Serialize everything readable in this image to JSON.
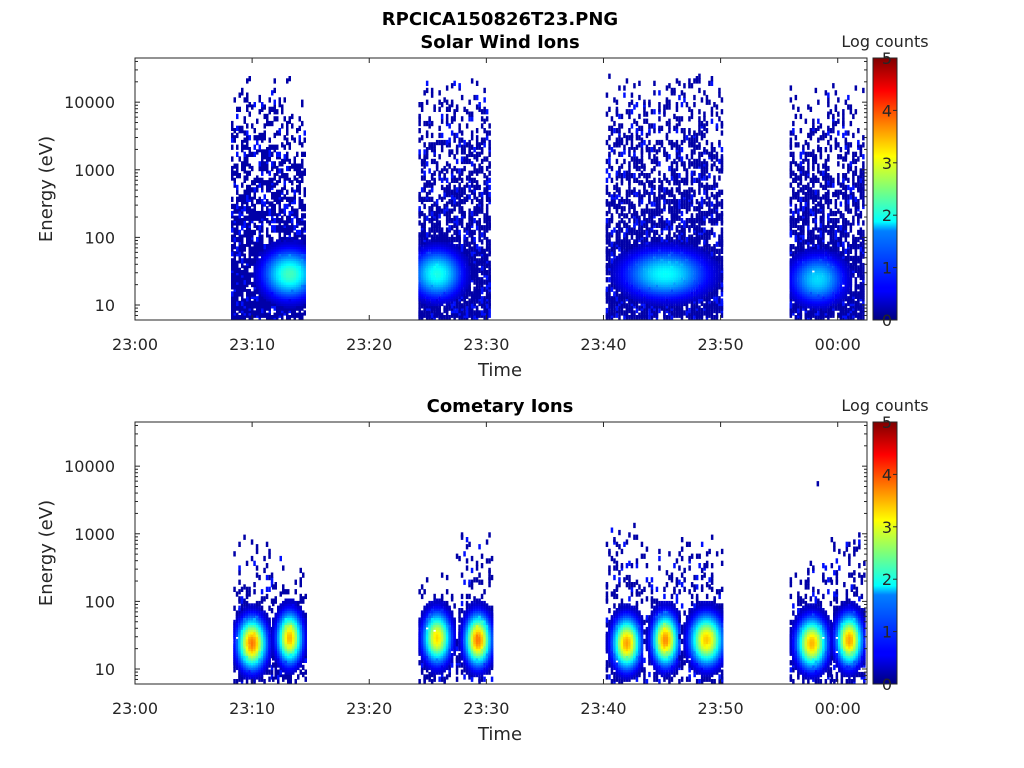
{
  "figure_title": "RPCICA150826T23.PNG",
  "chart_data": [
    {
      "type": "heatmap",
      "title": "Solar Wind Ions",
      "xlabel": "Time",
      "ylabel": "Energy (eV)",
      "x_ticks": [
        "23:00",
        "23:10",
        "23:20",
        "23:30",
        "23:40",
        "23:50",
        "00:00"
      ],
      "x_tick_minutes": [
        0,
        10,
        20,
        30,
        40,
        50,
        60
      ],
      "xlim_minutes": [
        0,
        62.5
      ],
      "y_scale": "log",
      "ylim": [
        6,
        45000
      ],
      "y_ticks": [
        10,
        100,
        1000,
        10000
      ],
      "y_tick_labels": [
        "10",
        "100",
        "1000",
        "10000"
      ],
      "colorbar": {
        "label": "Log counts",
        "range": [
          0,
          5
        ],
        "ticks": [
          "0",
          "1",
          "2",
          "3",
          "4",
          "5"
        ],
        "colormap": "jet"
      },
      "bursts": [
        {
          "t_start": 8.3,
          "t_end": 14.7,
          "core_t": 13.2,
          "core_energy": 30,
          "core_log_counts": 2.2,
          "max_energy": 23000
        },
        {
          "t_start": 24.3,
          "t_end": 30.3,
          "core_t": 25.8,
          "core_energy": 30,
          "core_log_counts": 2.0,
          "max_energy": 21000
        },
        {
          "t_start": 40.3,
          "t_end": 50.3,
          "core_t": 45.3,
          "core_energy": 30,
          "core_log_counts": 1.9,
          "max_energy": 25000
        },
        {
          "t_start": 56.0,
          "t_end": 62.5,
          "core_t": 58.3,
          "core_energy": 25,
          "core_log_counts": 1.7,
          "max_energy": 18000
        }
      ]
    },
    {
      "type": "heatmap",
      "title": "Cometary Ions",
      "xlabel": "Time",
      "ylabel": "Energy (eV)",
      "x_ticks": [
        "23:00",
        "23:10",
        "23:20",
        "23:30",
        "23:40",
        "23:50",
        "00:00"
      ],
      "x_tick_minutes": [
        0,
        10,
        20,
        30,
        40,
        50,
        60
      ],
      "xlim_minutes": [
        0,
        62.5
      ],
      "y_scale": "log",
      "ylim": [
        6,
        45000
      ],
      "y_ticks": [
        10,
        100,
        1000,
        10000
      ],
      "y_tick_labels": [
        "10",
        "100",
        "1000",
        "10000"
      ],
      "colorbar": {
        "label": "Log counts",
        "range": [
          0,
          5
        ],
        "ticks": [
          "0",
          "1",
          "2",
          "3",
          "4",
          "5"
        ],
        "colormap": "jet"
      },
      "isolated_points": [
        {
          "t": 58.3,
          "energy": 5500,
          "log_counts": 0.2
        }
      ],
      "bursts": [
        {
          "t_start": 8.5,
          "t_end": 11.8,
          "core_t": 10.0,
          "core_energy": 25,
          "core_log_counts": 3.8,
          "max_energy": 1000
        },
        {
          "t_start": 11.8,
          "t_end": 14.7,
          "core_t": 13.2,
          "core_energy": 30,
          "core_log_counts": 3.5,
          "max_energy": 450
        },
        {
          "t_start": 24.3,
          "t_end": 27.5,
          "core_t": 25.8,
          "core_energy": 30,
          "core_log_counts": 3.3,
          "max_energy": 250
        },
        {
          "t_start": 27.5,
          "t_end": 30.5,
          "core_t": 29.3,
          "core_energy": 28,
          "core_log_counts": 3.8,
          "max_energy": 1000
        },
        {
          "t_start": 40.3,
          "t_end": 43.5,
          "core_t": 42.0,
          "core_energy": 25,
          "core_log_counts": 3.6,
          "max_energy": 1500
        },
        {
          "t_start": 43.5,
          "t_end": 46.5,
          "core_t": 45.3,
          "core_energy": 28,
          "core_log_counts": 3.7,
          "max_energy": 600
        },
        {
          "t_start": 46.5,
          "t_end": 50.3,
          "core_t": 48.8,
          "core_energy": 28,
          "core_log_counts": 3.4,
          "max_energy": 900
        },
        {
          "t_start": 56.0,
          "t_end": 59.5,
          "core_t": 57.8,
          "core_energy": 25,
          "core_log_counts": 3.5,
          "max_energy": 400
        },
        {
          "t_start": 59.5,
          "t_end": 62.5,
          "core_t": 61.0,
          "core_energy": 28,
          "core_log_counts": 3.6,
          "max_energy": 1000
        }
      ]
    }
  ]
}
